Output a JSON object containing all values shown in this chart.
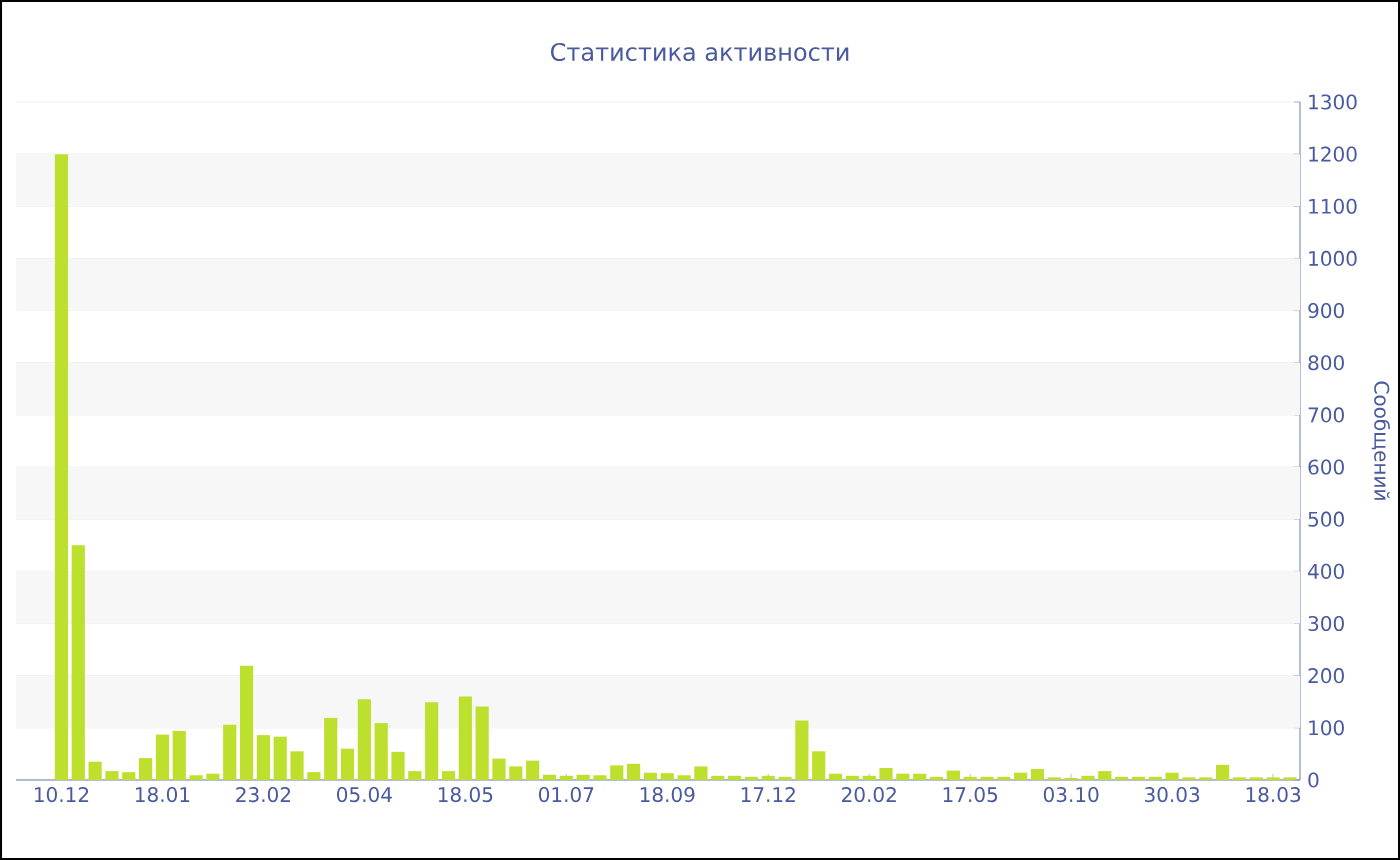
{
  "chart_data": {
    "type": "bar",
    "title": "Статистика активности",
    "ylabel": "Сообщений",
    "categories": [
      "10.12",
      null,
      null,
      null,
      null,
      null,
      "18.01",
      null,
      null,
      null,
      null,
      null,
      "23.02",
      null,
      null,
      null,
      null,
      null,
      "05.04",
      null,
      null,
      null,
      null,
      null,
      "18.05",
      null,
      null,
      null,
      null,
      null,
      "01.07",
      null,
      null,
      null,
      null,
      null,
      "18.09",
      null,
      null,
      null,
      null,
      null,
      "17.12",
      null,
      null,
      null,
      null,
      null,
      "20.02",
      null,
      null,
      null,
      null,
      null,
      "17.05",
      null,
      null,
      null,
      null,
      null,
      "03.10",
      null,
      null,
      null,
      null,
      null,
      "30.03",
      null,
      null,
      null,
      null,
      null,
      "18.03",
      null
    ],
    "values": [
      1200,
      450,
      35,
      17,
      15,
      42,
      87,
      94,
      9,
      12,
      106,
      219,
      86,
      83,
      55,
      15,
      119,
      60,
      155,
      109,
      54,
      17,
      149,
      17,
      160,
      141,
      41,
      26,
      37,
      10,
      8,
      10,
      9,
      28,
      31,
      14,
      13,
      9,
      26,
      8,
      8,
      6,
      8,
      6,
      114,
      55,
      12,
      8,
      8,
      23,
      12,
      12,
      6,
      18,
      6,
      6,
      6,
      14,
      21,
      5,
      4,
      8,
      17,
      6,
      6,
      6,
      14,
      5,
      5,
      29,
      5,
      5,
      5,
      5
    ],
    "color": "#bde02e",
    "ylim": [
      0,
      1300
    ],
    "yticks": [
      0,
      100,
      200,
      300,
      400,
      500,
      600,
      700,
      800,
      900,
      1000,
      1100,
      1200,
      1300
    ],
    "grid": "y"
  }
}
